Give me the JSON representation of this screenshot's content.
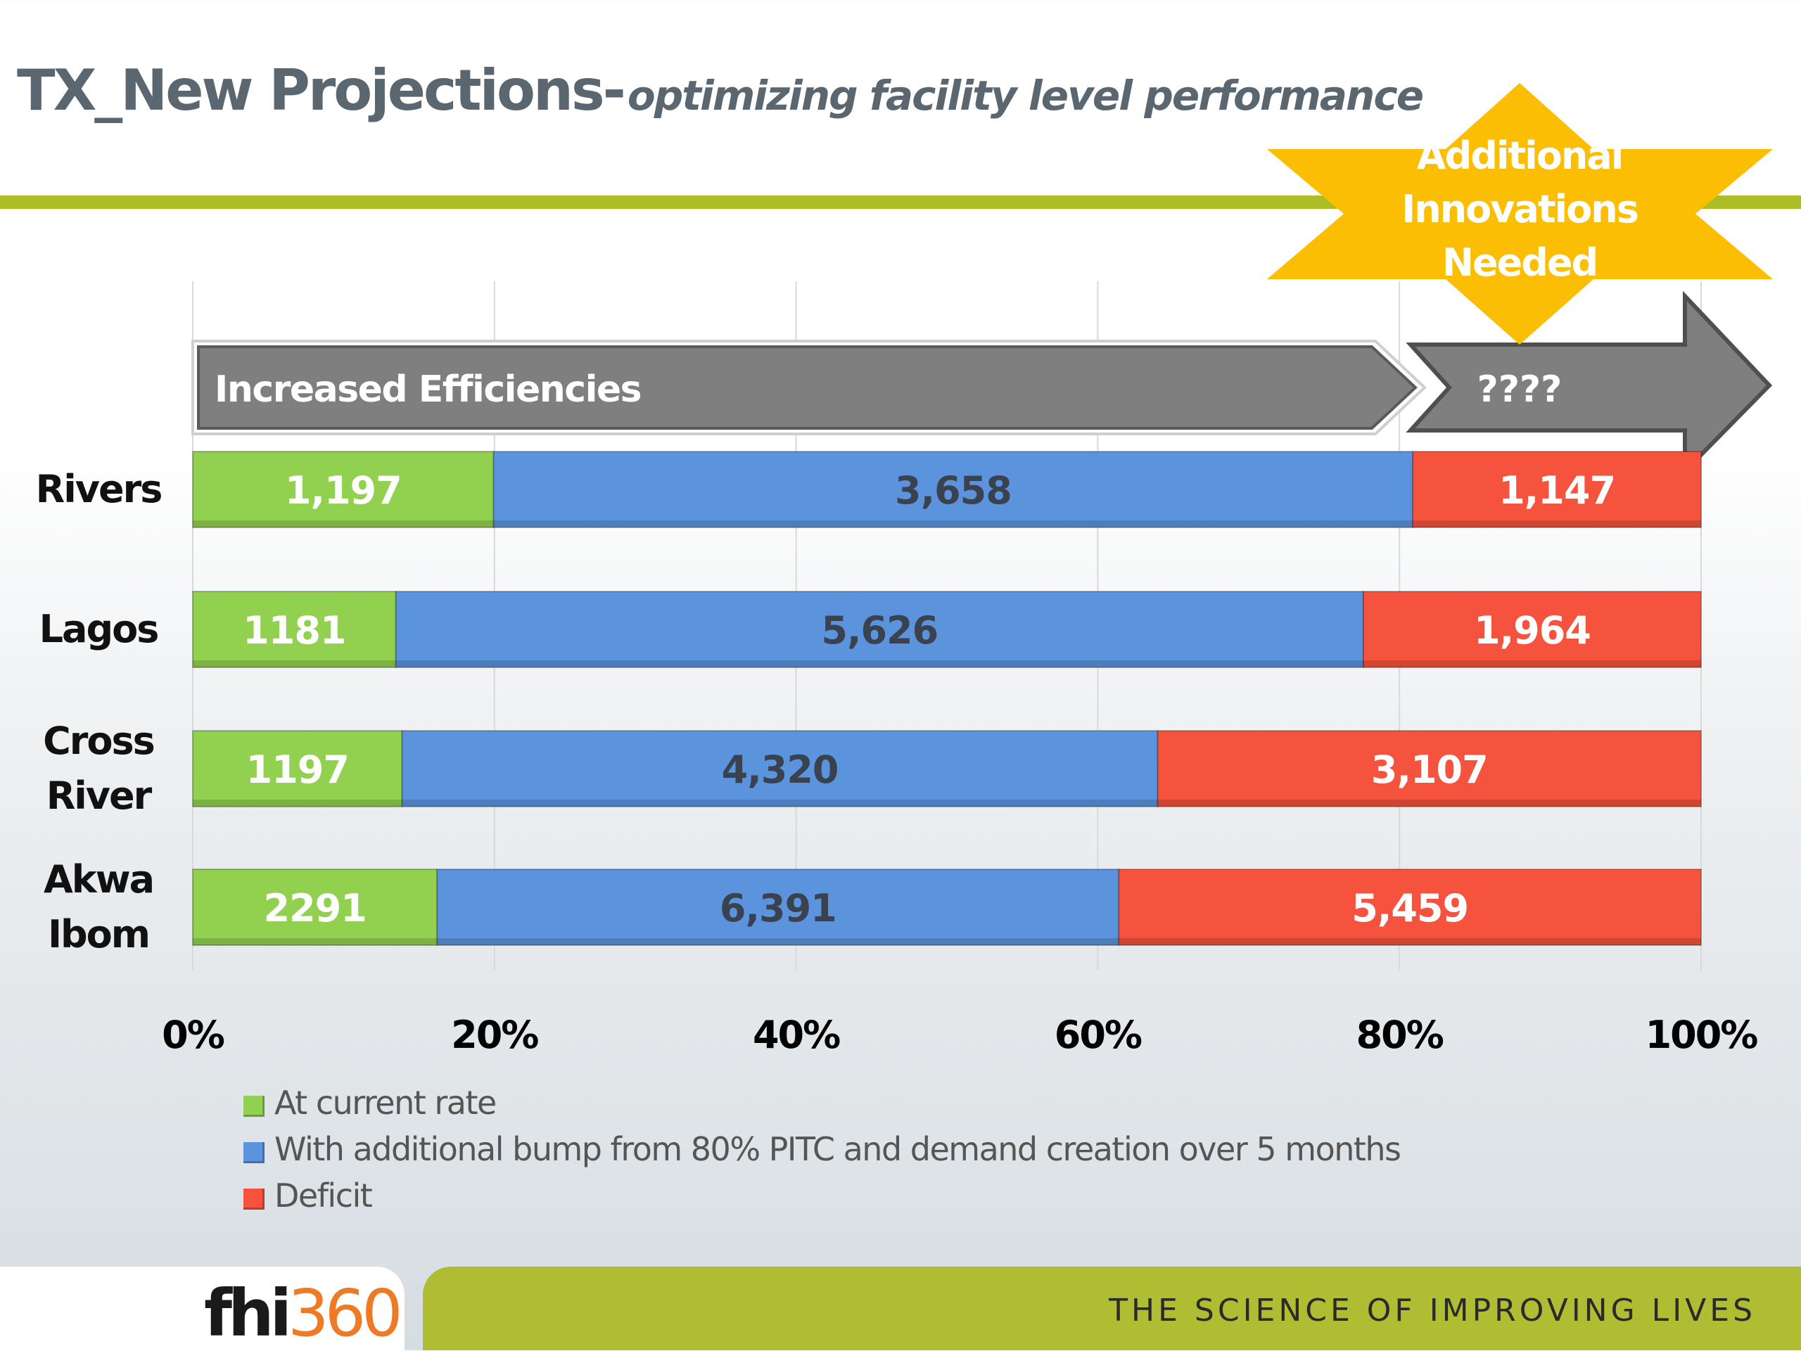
{
  "title": {
    "main": "TX_New Projections-",
    "subtitle": "optimizing facility level performance"
  },
  "annotations": {
    "efficiencies_arrow": "Increased Efficiencies",
    "unknown_arrow": "????",
    "star_lines": [
      "Additional",
      "Innovations",
      "Needed"
    ]
  },
  "colors": {
    "green": "#92d050",
    "blue": "#5b93dc",
    "red": "#f5533d",
    "arrow_gray": "#7f7f7f",
    "star_gold": "#fbbe03",
    "rule_green": "#adbd25"
  },
  "chart_data": {
    "type": "bar",
    "orientation": "horizontal",
    "stacked": "percent",
    "title": "",
    "xlabel": "",
    "ylabel": "",
    "xlim": [
      0,
      100
    ],
    "x_ticks": [
      "0%",
      "20%",
      "40%",
      "60%",
      "80%",
      "100%"
    ],
    "grid": true,
    "legend_position": "bottom-left",
    "categories": [
      "Rivers",
      "Lagos",
      "Cross River",
      "Akwa Ibom"
    ],
    "category_label_lines": [
      [
        "Rivers"
      ],
      [
        "Lagos"
      ],
      [
        "Cross",
        "River"
      ],
      [
        "Akwa",
        "Ibom"
      ]
    ],
    "series": [
      {
        "name": "At current rate",
        "color": "#92d050",
        "values": [
          1197,
          1181,
          1197,
          2291
        ],
        "labels": [
          "1,197",
          "1181",
          "1197",
          "2291"
        ],
        "label_color": "#ffffff"
      },
      {
        "name": "With additional bump from 80% PITC and demand creation over 5 months",
        "color": "#5b93dc",
        "values": [
          3658,
          5626,
          4320,
          6391
        ],
        "labels": [
          "3,658",
          "5,626",
          "4,320",
          "6,391"
        ],
        "label_color": "#3a4250"
      },
      {
        "name": "Deficit",
        "color": "#f5533d",
        "values": [
          1147,
          1964,
          3107,
          5459
        ],
        "labels": [
          "1,147",
          "1,964",
          "3,107",
          "5,459"
        ],
        "label_color": "#ffffff"
      }
    ]
  },
  "footer": {
    "logo_main": "fhi",
    "logo_num": "360",
    "tagline": "THE SCIENCE OF IMPROVING LIVES"
  }
}
